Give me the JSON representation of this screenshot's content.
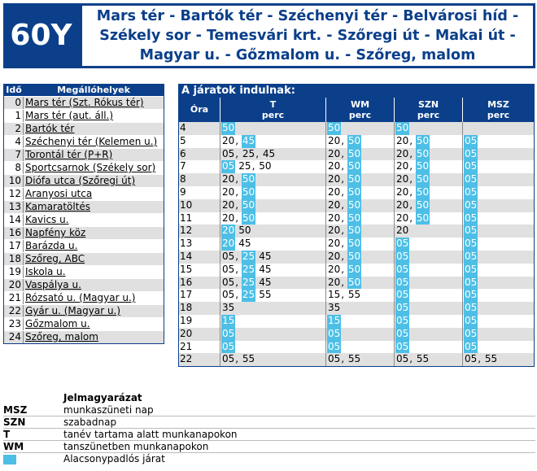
{
  "header": {
    "route_number": "60Y",
    "title_line1": "Mars tér - Bartók tér - Széchenyi tér - Belvárosi híd -",
    "title_line2": "Székely sor - Temesvári krt. - Szőregi út - Makai út -",
    "title_line3": "Magyar u. - Gőzmalom u. - Szőreg, malom"
  },
  "stops": {
    "col_time": "Idő",
    "col_stops": "Megállóhelyek",
    "items": [
      {
        "idx": "0",
        "name": "Mars tér (Szt. Rókus tér)"
      },
      {
        "idx": "1",
        "name": "Mars tér (aut. áll.)"
      },
      {
        "idx": "2",
        "name": "Bartók tér"
      },
      {
        "idx": "4",
        "name": "Széchenyi tér (Kelemen u.)"
      },
      {
        "idx": "7",
        "name": "Torontál tér (P+R)"
      },
      {
        "idx": "8",
        "name": "Sportcsarnok (Székely sor)"
      },
      {
        "idx": "10",
        "name": "Diófa utca (Szőregi út)"
      },
      {
        "idx": "12",
        "name": "Aranyosi utca"
      },
      {
        "idx": "13",
        "name": "Kamaratöltés"
      },
      {
        "idx": "14",
        "name": "Kavics u."
      },
      {
        "idx": "16",
        "name": "Napfény köz"
      },
      {
        "idx": "17",
        "name": "Barázda u."
      },
      {
        "idx": "18",
        "name": "Szőreg, ABC"
      },
      {
        "idx": "19",
        "name": "Iskola u."
      },
      {
        "idx": "20",
        "name": "Vaspálya u."
      },
      {
        "idx": "21",
        "name": "Rózsató u. (Magyar u.)"
      },
      {
        "idx": "22",
        "name": "Gyár u. (Magyar u.)"
      },
      {
        "idx": "23",
        "name": "Gőzmalom u."
      },
      {
        "idx": "24",
        "name": "Szőreg, malom"
      }
    ]
  },
  "departures": {
    "title": "A járatok indulnak:",
    "headers": {
      "hour": "Óra",
      "t": "T",
      "wm": "WM",
      "szn": "SZN",
      "msz": "MSZ",
      "perc": "perc"
    },
    "rows": [
      {
        "hour": "4",
        "t": [
          {
            "v": "50",
            "low": true
          }
        ],
        "wm": [
          {
            "v": "50",
            "low": true
          }
        ],
        "szn": [
          {
            "v": "50",
            "low": true
          }
        ],
        "msz": []
      },
      {
        "hour": "5",
        "t": [
          {
            "v": "20",
            "low": false
          },
          {
            "v": "45",
            "low": true
          }
        ],
        "wm": [
          {
            "v": "20",
            "low": false
          },
          {
            "v": "50",
            "low": true
          }
        ],
        "szn": [
          {
            "v": "20",
            "low": false
          },
          {
            "v": "50",
            "low": true
          }
        ],
        "msz": [
          {
            "v": "05",
            "low": true
          }
        ]
      },
      {
        "hour": "6",
        "t": [
          {
            "v": "05",
            "low": false
          },
          {
            "v": "25",
            "low": false
          },
          {
            "v": "45",
            "low": false
          }
        ],
        "wm": [
          {
            "v": "20",
            "low": false
          },
          {
            "v": "50",
            "low": true
          }
        ],
        "szn": [
          {
            "v": "20",
            "low": false
          },
          {
            "v": "50",
            "low": true
          }
        ],
        "msz": [
          {
            "v": "05",
            "low": true
          }
        ]
      },
      {
        "hour": "7",
        "t": [
          {
            "v": "05",
            "low": true
          },
          {
            "v": "25",
            "low": false
          },
          {
            "v": "50",
            "low": false
          }
        ],
        "wm": [
          {
            "v": "20",
            "low": false
          },
          {
            "v": "50",
            "low": true
          }
        ],
        "szn": [
          {
            "v": "20",
            "low": false
          },
          {
            "v": "50",
            "low": true
          }
        ],
        "msz": [
          {
            "v": "05",
            "low": true
          }
        ]
      },
      {
        "hour": "8",
        "t": [
          {
            "v": "20",
            "low": false
          },
          {
            "v": "50",
            "low": true
          }
        ],
        "wm": [
          {
            "v": "20",
            "low": false
          },
          {
            "v": "50",
            "low": true
          }
        ],
        "szn": [
          {
            "v": "20",
            "low": false
          },
          {
            "v": "50",
            "low": true
          }
        ],
        "msz": [
          {
            "v": "05",
            "low": true
          }
        ]
      },
      {
        "hour": "9",
        "t": [
          {
            "v": "20",
            "low": false
          },
          {
            "v": "50",
            "low": true
          }
        ],
        "wm": [
          {
            "v": "20",
            "low": false
          },
          {
            "v": "50",
            "low": true
          }
        ],
        "szn": [
          {
            "v": "20",
            "low": false
          },
          {
            "v": "50",
            "low": true
          }
        ],
        "msz": [
          {
            "v": "05",
            "low": true
          }
        ]
      },
      {
        "hour": "10",
        "t": [
          {
            "v": "20",
            "low": false
          },
          {
            "v": "50",
            "low": true
          }
        ],
        "wm": [
          {
            "v": "20",
            "low": false
          },
          {
            "v": "50",
            "low": true
          }
        ],
        "szn": [
          {
            "v": "20",
            "low": false
          },
          {
            "v": "50",
            "low": true
          }
        ],
        "msz": [
          {
            "v": "05",
            "low": true
          }
        ]
      },
      {
        "hour": "11",
        "t": [
          {
            "v": "20",
            "low": false
          },
          {
            "v": "50",
            "low": true
          }
        ],
        "wm": [
          {
            "v": "20",
            "low": false
          },
          {
            "v": "50",
            "low": true
          }
        ],
        "szn": [
          {
            "v": "20",
            "low": false
          },
          {
            "v": "50",
            "low": true
          }
        ],
        "msz": [
          {
            "v": "05",
            "low": true
          }
        ]
      },
      {
        "hour": "12",
        "t": [
          {
            "v": "20",
            "low": true
          },
          {
            "v": "50",
            "low": false
          }
        ],
        "wm": [
          {
            "v": "20",
            "low": false
          },
          {
            "v": "50",
            "low": true
          }
        ],
        "szn": [
          {
            "v": "20",
            "low": false
          }
        ],
        "msz": [
          {
            "v": "05",
            "low": true
          }
        ]
      },
      {
        "hour": "13",
        "t": [
          {
            "v": "20",
            "low": true
          },
          {
            "v": "45",
            "low": false
          }
        ],
        "wm": [
          {
            "v": "20",
            "low": false
          },
          {
            "v": "50",
            "low": true
          }
        ],
        "szn": [
          {
            "v": "05",
            "low": true
          }
        ],
        "msz": [
          {
            "v": "05",
            "low": true
          }
        ]
      },
      {
        "hour": "14",
        "t": [
          {
            "v": "05",
            "low": false
          },
          {
            "v": "25",
            "low": true
          },
          {
            "v": "45",
            "low": false
          }
        ],
        "wm": [
          {
            "v": "20",
            "low": false
          },
          {
            "v": "50",
            "low": true
          }
        ],
        "szn": [
          {
            "v": "05",
            "low": true
          }
        ],
        "msz": [
          {
            "v": "05",
            "low": true
          }
        ]
      },
      {
        "hour": "15",
        "t": [
          {
            "v": "05",
            "low": false
          },
          {
            "v": "25",
            "low": true
          },
          {
            "v": "45",
            "low": false
          }
        ],
        "wm": [
          {
            "v": "20",
            "low": false
          },
          {
            "v": "50",
            "low": true
          }
        ],
        "szn": [
          {
            "v": "05",
            "low": true
          }
        ],
        "msz": [
          {
            "v": "05",
            "low": true
          }
        ]
      },
      {
        "hour": "16",
        "t": [
          {
            "v": "05",
            "low": false
          },
          {
            "v": "25",
            "low": true
          },
          {
            "v": "45",
            "low": false
          }
        ],
        "wm": [
          {
            "v": "20",
            "low": false
          },
          {
            "v": "50",
            "low": true
          }
        ],
        "szn": [
          {
            "v": "05",
            "low": true
          }
        ],
        "msz": [
          {
            "v": "05",
            "low": true
          }
        ]
      },
      {
        "hour": "17",
        "t": [
          {
            "v": "05",
            "low": false
          },
          {
            "v": "25",
            "low": true
          },
          {
            "v": "55",
            "low": false
          }
        ],
        "wm": [
          {
            "v": "15",
            "low": false
          },
          {
            "v": "55",
            "low": false
          }
        ],
        "szn": [
          {
            "v": "05",
            "low": true
          }
        ],
        "msz": [
          {
            "v": "05",
            "low": true
          }
        ]
      },
      {
        "hour": "18",
        "t": [
          {
            "v": "35",
            "low": false
          }
        ],
        "wm": [
          {
            "v": "35",
            "low": false
          }
        ],
        "szn": [
          {
            "v": "05",
            "low": true
          }
        ],
        "msz": [
          {
            "v": "05",
            "low": true
          }
        ]
      },
      {
        "hour": "19",
        "t": [
          {
            "v": "15",
            "low": true
          }
        ],
        "wm": [
          {
            "v": "15",
            "low": true
          }
        ],
        "szn": [
          {
            "v": "05",
            "low": true
          }
        ],
        "msz": [
          {
            "v": "05",
            "low": true
          }
        ]
      },
      {
        "hour": "20",
        "t": [
          {
            "v": "05",
            "low": true
          }
        ],
        "wm": [
          {
            "v": "05",
            "low": true
          }
        ],
        "szn": [
          {
            "v": "05",
            "low": true
          }
        ],
        "msz": [
          {
            "v": "05",
            "low": true
          }
        ]
      },
      {
        "hour": "21",
        "t": [
          {
            "v": "05",
            "low": true
          }
        ],
        "wm": [
          {
            "v": "05",
            "low": true
          }
        ],
        "szn": [
          {
            "v": "05",
            "low": true
          }
        ],
        "msz": [
          {
            "v": "05",
            "low": true
          }
        ]
      },
      {
        "hour": "22",
        "t": [
          {
            "v": "05",
            "low": false
          },
          {
            "v": "55",
            "low": false
          }
        ],
        "wm": [
          {
            "v": "05",
            "low": false
          },
          {
            "v": "55",
            "low": false
          }
        ],
        "szn": [
          {
            "v": "05",
            "low": false
          },
          {
            "v": "55",
            "low": false
          }
        ],
        "msz": [
          {
            "v": "05",
            "low": false
          },
          {
            "v": "55",
            "low": false
          }
        ]
      }
    ]
  },
  "legend": {
    "title": "Jelmagyarázat",
    "items": [
      {
        "key": "MSZ",
        "desc": "munkaszüneti nap"
      },
      {
        "key": "SZN",
        "desc": "szabadnap"
      },
      {
        "key": "T",
        "desc": "tanév tartama alatt munkanapokon"
      },
      {
        "key": "WM",
        "desc": "tanszünetben munkanapokon"
      }
    ],
    "swatch_desc": "Alacsonypadlós járat"
  },
  "colors": {
    "brand_blue": "#0b3f8a",
    "low_floor": "#4dbfe6",
    "row_stripe": "#e0e0e0"
  }
}
